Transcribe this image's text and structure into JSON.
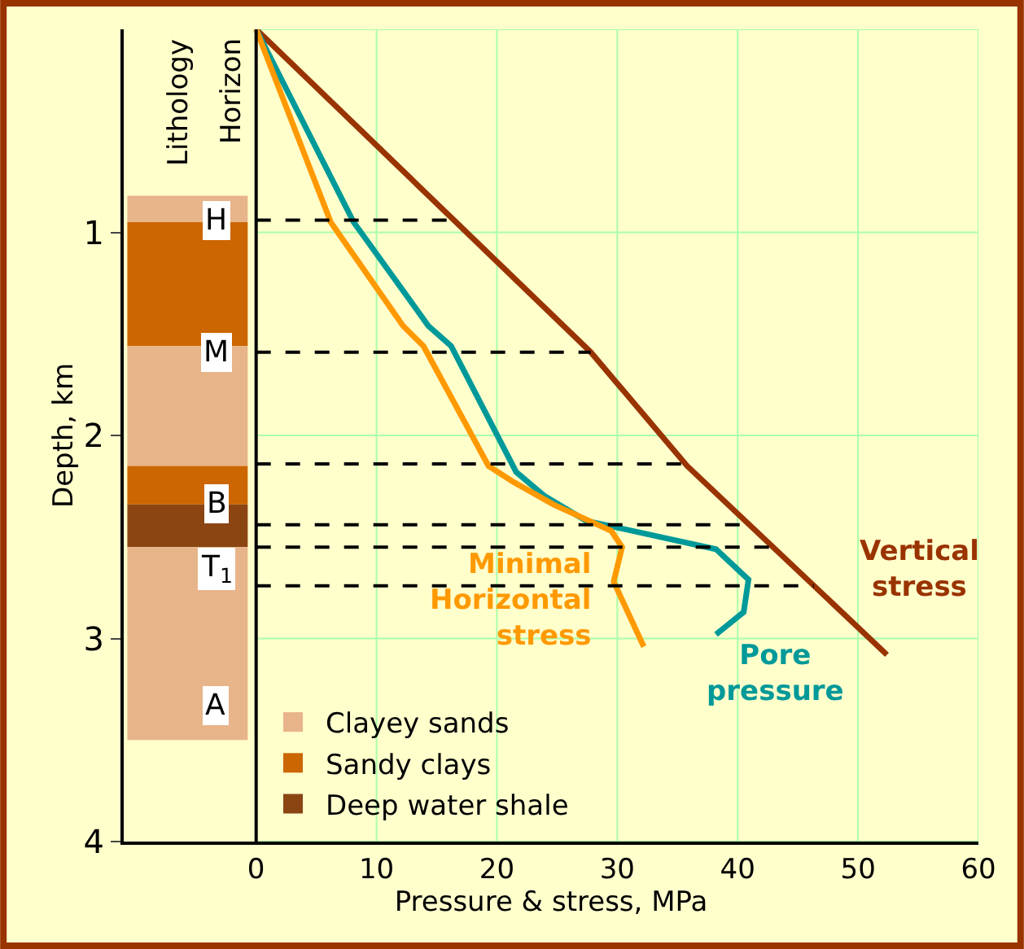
{
  "chart_data": {
    "type": "line",
    "xlabel": "Pressure & stress, MPa",
    "ylabel": "Depth, km",
    "xlim": [
      -11,
      60
    ],
    "xticks": [
      0,
      10,
      20,
      30,
      40,
      50,
      60
    ],
    "ylim": [
      4,
      0
    ],
    "yticks": [
      1,
      2,
      3,
      4
    ],
    "grid": true,
    "legend": "bottom left",
    "line_style": "solid",
    "marker": "none",
    "series": [
      {
        "name": "Vertical stress",
        "color": "#993300",
        "x": [
          0,
          27.8,
          35.8,
          52.4
        ],
        "values": [
          0,
          1.59,
          2.15,
          3.08
        ]
      },
      {
        "name": "Pore pressure",
        "color": "#009999",
        "x": [
          0,
          8.1,
          14.3,
          16.2,
          21.6,
          24,
          27.4,
          38.2,
          40.9,
          40.5,
          38.2
        ],
        "values": [
          0,
          0.95,
          1.46,
          1.56,
          2.18,
          2.3,
          2.42,
          2.56,
          2.71,
          2.87,
          2.98
        ]
      },
      {
        "name": "Minimal Horizontal stress",
        "color": "#ff9900",
        "x": [
          0,
          6.2,
          12.2,
          13.9,
          19.3,
          21.4,
          24.7,
          29.5,
          30.4,
          29.7,
          32.2
        ],
        "values": [
          0,
          0.95,
          1.46,
          1.56,
          2.15,
          2.23,
          2.34,
          2.47,
          2.55,
          2.72,
          3.04
        ]
      },
      {
        "type": "bar",
        "name": "Clayey sands",
        "color": "#e8b48a",
        "x": [
          -5.7
        ],
        "values": [
          0.13
        ],
        "base": [
          0.82
        ]
      },
      {
        "type": "bar",
        "name": "Sandy clays",
        "color": "#cc6600",
        "x": [
          -5.7
        ],
        "values": [
          0.61
        ],
        "base": [
          0.95
        ]
      },
      {
        "type": "bar",
        "color": "#e8b48a",
        "x": [
          -5.7
        ],
        "values": [
          0.59
        ],
        "base": [
          1.56
        ]
      },
      {
        "type": "bar",
        "color": "#cc6600",
        "x": [
          -5.7
        ],
        "values": [
          0.19
        ],
        "base": [
          2.15
        ]
      },
      {
        "type": "bar",
        "name": "Deep water shale",
        "color": "#8b4513",
        "x": [
          -5.7
        ],
        "values": [
          0.21
        ],
        "base": [
          2.34
        ]
      },
      {
        "type": "bar",
        "color": "#e8b48a",
        "x": [
          -5.7
        ],
        "values": [
          0.95
        ],
        "base": [
          2.55
        ]
      }
    ],
    "ref_lines": [
      {
        "axis": "y",
        "value": 0.94,
        "label": "H",
        "line_style": "dashed",
        "color": "#000000"
      },
      {
        "axis": "y",
        "value": 1.59,
        "label": "M",
        "line_style": "dashed",
        "color": "#000000"
      },
      {
        "axis": "y",
        "value": 2.14,
        "label": null,
        "line_style": "dashed",
        "color": "#000000"
      },
      {
        "axis": "y",
        "value": 2.44,
        "label": "B",
        "line_style": "dashed",
        "color": "#000000"
      },
      {
        "axis": "y",
        "value": 2.55,
        "label": "T$_{1}$",
        "line_style": "dashed",
        "color": "#000000"
      },
      {
        "axis": "y",
        "value": 2.74,
        "label": null,
        "line_style": "dashed",
        "color": "#000000"
      }
    ],
    "annotations": [
      "Lithology",
      "Horizon",
      "A"
    ]
  }
}
